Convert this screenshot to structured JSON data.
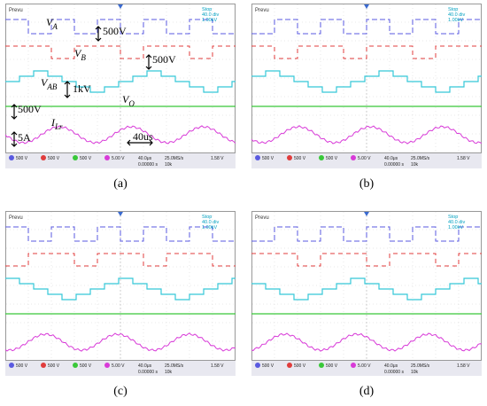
{
  "panels": [
    {
      "caption": "(a)",
      "header": "Prevu",
      "info": [
        "Stop",
        "40.0 div",
        "1.00kV"
      ],
      "status": {
        "ch": [
          "500 V",
          "500 V",
          "500 V",
          "5.00 V"
        ],
        "timebase": "40.0μs",
        "offset": "0.00000 s",
        "rate": "25.0MS/s",
        "points": "10k",
        "trig": "1.58 V"
      },
      "annotations": {
        "va": "V",
        "va_sub": "A",
        "vb": "V",
        "vb_sub": "B",
        "vab": "V",
        "vab_sub": "AB",
        "vo": "V",
        "vo_sub": "O",
        "ilr": "I",
        "ilr_sub": "Lr",
        "scale1": "500V",
        "scale2": "500V",
        "scale3": "1kV",
        "scale4": "500V",
        "scale5": "5A",
        "time": "40us"
      }
    },
    {
      "caption": "(b)",
      "header": "Prevu",
      "info": [
        "Stop",
        "40.0 div",
        "1.00kV"
      ],
      "status": {
        "ch": [
          "500 V",
          "500 V",
          "500 V",
          "5.00 V"
        ],
        "timebase": "40.0μs",
        "offset": "0.00000 s",
        "rate": "25.0MS/s",
        "points": "10k",
        "trig": "1.58 V"
      }
    },
    {
      "caption": "(c)",
      "header": "Prevu",
      "info": [
        "Stop",
        "40.0 div",
        "1.00kV"
      ],
      "status": {
        "ch": [
          "500 V",
          "500 V",
          "500 V",
          "5.00 V"
        ],
        "timebase": "40.0μs",
        "offset": "0.00000 s",
        "rate": "25.0MS/s",
        "points": "10k",
        "trig": "1.58 V"
      }
    },
    {
      "caption": "(d)",
      "header": "Prevu",
      "info": [
        "Stop",
        "40.0 div",
        "1.00kV"
      ],
      "status": {
        "ch": [
          "500 V",
          "500 V",
          "500 V",
          "5.00 V"
        ],
        "timebase": "40.0μs",
        "offset": "0.00000 s",
        "rate": "25.0MS/s",
        "points": "10k",
        "trig": "1.58 V"
      }
    }
  ],
  "colors": {
    "va": "#5a5ae0",
    "vb": "#e03c3c",
    "vab": "#35c8d8",
    "vo": "#39c839",
    "ilr": "#d83ad8",
    "grid": "#c8c8c8",
    "statusbar": "#1a1a6e"
  }
}
